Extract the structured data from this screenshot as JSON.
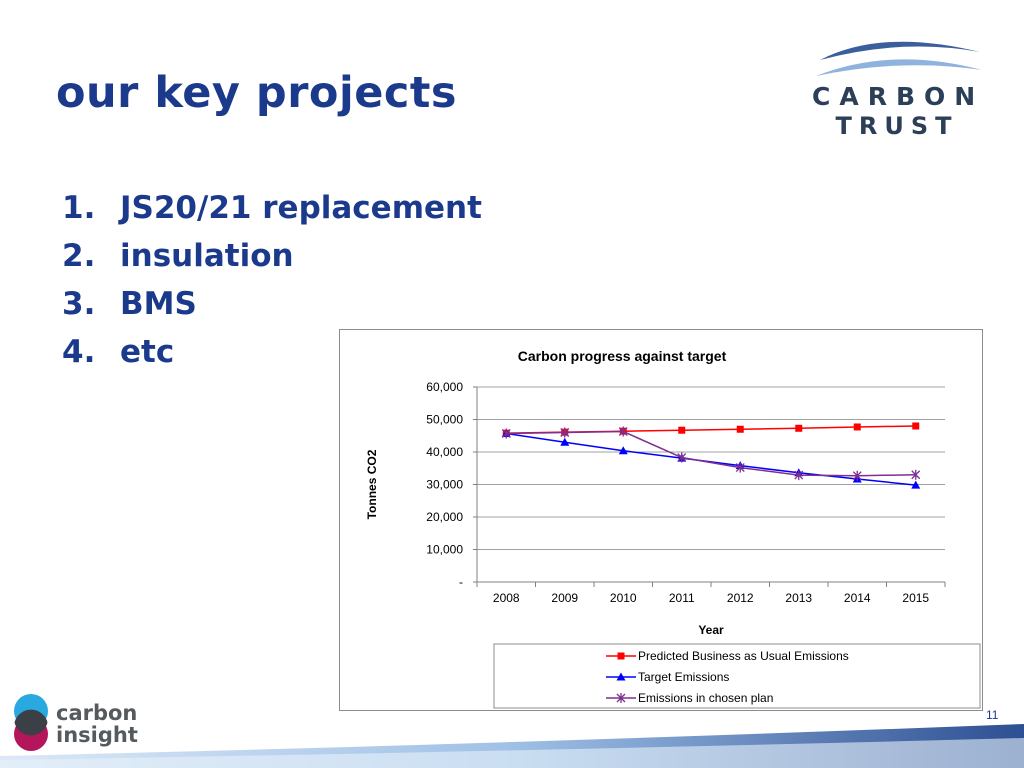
{
  "slide": {
    "title": "our key projects",
    "page_number": "11"
  },
  "projects": [
    {
      "num": "1.",
      "label": "JS20/21 replacement"
    },
    {
      "num": "2.",
      "label": "insulation"
    },
    {
      "num": "3.",
      "label": "BMS"
    },
    {
      "num": "4.",
      "label": "etc"
    }
  ],
  "logos": {
    "carbon_trust": {
      "line1": "CARBON",
      "line2": "TRUST"
    },
    "carbon_insight": {
      "line1": "carbon",
      "line2": "insight"
    }
  },
  "colors": {
    "title": "#1b3a8c",
    "series_bau": "#ff0000",
    "series_target": "#0000ff",
    "series_plan": "#7f2f8f",
    "gridline": "#a0a0a0"
  },
  "chart_data": {
    "type": "line",
    "title": "Carbon progress against target",
    "xlabel": "Year",
    "ylabel": "Tonnes CO2",
    "categories": [
      "2008",
      "2009",
      "2010",
      "2011",
      "2012",
      "2013",
      "2014",
      "2015"
    ],
    "ylim": [
      0,
      60000
    ],
    "yticks": [
      0,
      10000,
      20000,
      30000,
      40000,
      50000,
      60000
    ],
    "ytick_labels": [
      "-",
      "10,000",
      "20,000",
      "30,000",
      "40,000",
      "50,000",
      "60,000"
    ],
    "grid": true,
    "legend_position": "bottom",
    "series": [
      {
        "name": "Predicted Business as Usual Emissions",
        "marker": "square",
        "color": "#ff0000",
        "values": [
          45800,
          46100,
          46400,
          46700,
          47000,
          47300,
          47700,
          48000
        ]
      },
      {
        "name": "Target Emissions",
        "marker": "triangle",
        "color": "#0000ff",
        "values": [
          45700,
          43000,
          40400,
          38100,
          35800,
          33600,
          31700,
          29800
        ]
      },
      {
        "name": "Emissions in chosen plan",
        "marker": "star",
        "color": "#7f2f8f",
        "values": [
          45700,
          46000,
          46300,
          38300,
          35200,
          32900,
          32700,
          33000
        ]
      }
    ]
  }
}
